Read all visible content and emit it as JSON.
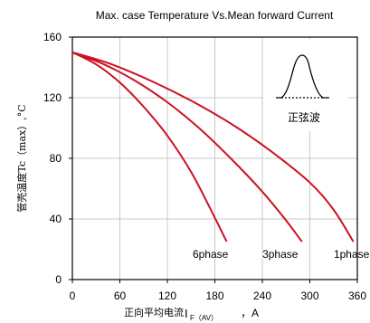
{
  "chart_data": {
    "type": "line",
    "title": "Max. case Temperature Vs.Mean forward Current",
    "xlabel_main": "正向平均电流",
    "xlabel_symbol": "I",
    "xlabel_sub": "F（AV）",
    "xlabel_unit": "，A",
    "ylabel": "管壳温度Tc（max）,°C",
    "xlim": [
      0,
      360
    ],
    "ylim": [
      0,
      160
    ],
    "xticks": [
      0,
      60,
      120,
      180,
      240,
      300,
      360
    ],
    "yticks": [
      0,
      40,
      80,
      120,
      160
    ],
    "grid": true,
    "inset_label": "正弦波",
    "series": [
      {
        "name": "6phase",
        "color": "#cc1122",
        "x": [
          0,
          30,
          60,
          90,
          120,
          150,
          175,
          195
        ],
        "y": [
          150,
          142,
          130,
          114,
          95,
          71,
          46,
          25
        ]
      },
      {
        "name": "3phase",
        "color": "#cc1122",
        "x": [
          0,
          40,
          80,
          120,
          160,
          200,
          240,
          270,
          290
        ],
        "y": [
          150,
          142,
          131,
          117,
          100,
          80,
          58,
          39,
          25
        ]
      },
      {
        "name": "1phase",
        "color": "#cc1122",
        "x": [
          0,
          50,
          100,
          150,
          200,
          250,
          300,
          330,
          355
        ],
        "y": [
          150,
          142,
          131,
          118,
          103,
          85,
          64,
          46,
          25
        ]
      }
    ]
  }
}
